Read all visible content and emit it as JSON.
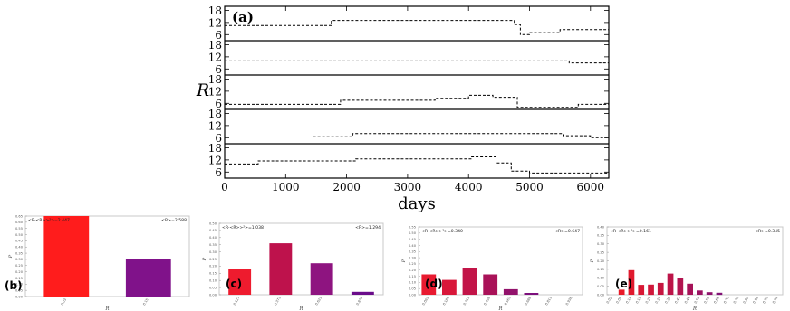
{
  "chart_data": [
    {
      "panel": "(a)",
      "type": "line",
      "xlabel": "days",
      "ylabel": "R",
      "xlim": [
        0,
        6300
      ],
      "xticks": [
        0,
        1000,
        2000,
        3000,
        4000,
        5000,
        6000
      ],
      "ylim": [
        3,
        20
      ],
      "yticks": [
        6,
        12,
        18
      ],
      "grid": false,
      "rows": [
        {
          "values": [
            [
              0,
              10.5
            ],
            [
              1750,
              10.5
            ],
            [
              1750,
              13
            ],
            [
              4750,
              13
            ],
            [
              4750,
              11
            ],
            [
              4850,
              11
            ],
            [
              4850,
              6
            ],
            [
              5000,
              6
            ],
            [
              5000,
              7
            ],
            [
              5500,
              7
            ],
            [
              5500,
              8.5
            ],
            [
              6300,
              8.5
            ]
          ]
        },
        {
          "values": [
            [
              0,
              10
            ],
            [
              5650,
              10
            ],
            [
              5650,
              9
            ],
            [
              6300,
              9
            ]
          ]
        },
        {
          "values": [
            [
              0,
              5.5
            ],
            [
              1900,
              5.5
            ],
            [
              1900,
              7.5
            ],
            [
              3450,
              7.5
            ],
            [
              3450,
              8.5
            ],
            [
              4000,
              8.5
            ],
            [
              4000,
              10
            ],
            [
              4400,
              10
            ],
            [
              4400,
              9
            ],
            [
              4800,
              9
            ],
            [
              4800,
              4
            ],
            [
              5800,
              4
            ],
            [
              5800,
              5.5
            ],
            [
              6300,
              5.5
            ]
          ]
        },
        {
          "values": [
            [
              1450,
              6.5
            ],
            [
              2100,
              6.5
            ],
            [
              2100,
              8
            ],
            [
              5550,
              8
            ],
            [
              5550,
              7
            ],
            [
              6000,
              7
            ],
            [
              6000,
              6
            ],
            [
              6300,
              6
            ]
          ]
        },
        {
          "values": [
            [
              0,
              10
            ],
            [
              550,
              10
            ],
            [
              550,
              11.5
            ],
            [
              2150,
              11.5
            ],
            [
              2150,
              12.5
            ],
            [
              4050,
              12.5
            ],
            [
              4050,
              13.5
            ],
            [
              4450,
              13.5
            ],
            [
              4450,
              10.5
            ],
            [
              4700,
              10.5
            ],
            [
              4700,
              6.5
            ],
            [
              5000,
              6.5
            ],
            [
              5000,
              5.5
            ],
            [
              6300,
              5.5
            ]
          ]
        }
      ]
    },
    {
      "panel": "(b)",
      "type": "bar",
      "top_left": "<R-<R>>²>=2.447",
      "top_right": "<R>=2.588",
      "xlabel": "R",
      "ylabel": "P",
      "ylim": [
        0,
        0.65
      ],
      "yticks": [
        "0.65",
        "0.60",
        "0.55",
        "0.50",
        "0.45",
        "0.40",
        "0.35",
        "0.30",
        "0.25",
        "0.20",
        "0.15",
        "0.10",
        "0.05",
        "0.00"
      ],
      "categories": [
        "0.03",
        "0.15"
      ],
      "values": [
        0.65,
        0.3
      ],
      "colors": [
        "#ff1c1c",
        "#80128a"
      ]
    },
    {
      "panel": "(c)",
      "type": "bar",
      "top_left": "<R-<R>>²>=1.038",
      "top_right": "<R>=1.294",
      "xlabel": "R",
      "ylabel": "P",
      "ylim": [
        0,
        0.5
      ],
      "yticks": [
        "0.50",
        "0.45",
        "0.40",
        "0.35",
        "0.30",
        "0.25",
        "0.20",
        "0.15",
        "0.10",
        "0.05",
        "0.00"
      ],
      "categories": [
        "0.127",
        "0.373",
        "0.623",
        "0.873"
      ],
      "values": [
        0.18,
        0.36,
        0.22,
        0.02
      ],
      "colors": [
        "#ee1b2e",
        "#be124c",
        "#8e1480",
        "#6a0c8a"
      ]
    },
    {
      "panel": "(d)",
      "type": "bar",
      "top_left": "<R-<R>>²>=0.340",
      "top_right": "<R>=0.647",
      "xlabel": "R",
      "ylabel": "P",
      "ylim": [
        0,
        0.55
      ],
      "yticks": [
        "0.55",
        "0.50",
        "0.45",
        "0.40",
        "0.35",
        "0.30",
        "0.25",
        "0.20",
        "0.15",
        "0.10",
        "0.05",
        "0.00"
      ],
      "categories": [
        "0.063",
        "0.188",
        "0.313",
        "0.438",
        "0.563",
        "0.688",
        "0.813",
        "0.938"
      ],
      "values": [
        0.165,
        0.12,
        0.22,
        0.165,
        0.045,
        0.015,
        0,
        0
      ],
      "colors": [
        "#e81a30",
        "#d8173a",
        "#c21448",
        "#a91258",
        "#92126b",
        "#7c107c",
        "#6c0c86",
        "#600a8c"
      ]
    },
    {
      "panel": "(e)",
      "type": "bar",
      "top_left": "<R-<R>>²>=0.161",
      "top_right": "<R>=0.345",
      "xlabel": "R",
      "ylabel": "P",
      "ylim": [
        0,
        0.4
      ],
      "yticks": [
        "0.40",
        "0.35",
        "0.30",
        "0.25",
        "0.20",
        "0.15",
        "0.10",
        "0.05",
        "0.00"
      ],
      "categories": [
        "0.02",
        "0.08",
        "0.14",
        "0.19",
        "0.25",
        "0.31",
        "0.36",
        "0.42",
        "0.48",
        "0.53",
        "0.59",
        "0.65",
        "0.70",
        "0.76",
        "0.82",
        "0.88",
        "0.93",
        "0.99"
      ],
      "values": [
        0,
        0.03,
        0.145,
        0.058,
        0.06,
        0.07,
        0.125,
        0.1,
        0.065,
        0.025,
        0.015,
        0.012,
        0,
        0,
        0,
        0,
        0,
        0
      ],
      "colors": [
        "#f01a22",
        "#e81a28",
        "#e01a2e",
        "#d81834",
        "#d0173a",
        "#c61540",
        "#bc1448",
        "#b21450",
        "#a61258",
        "#9a1262",
        "#8e126c",
        "#821276",
        "#7a107c",
        "#720e82",
        "#6a0c86",
        "#640c8a",
        "#5e0a8c",
        "#580a8e"
      ]
    }
  ]
}
